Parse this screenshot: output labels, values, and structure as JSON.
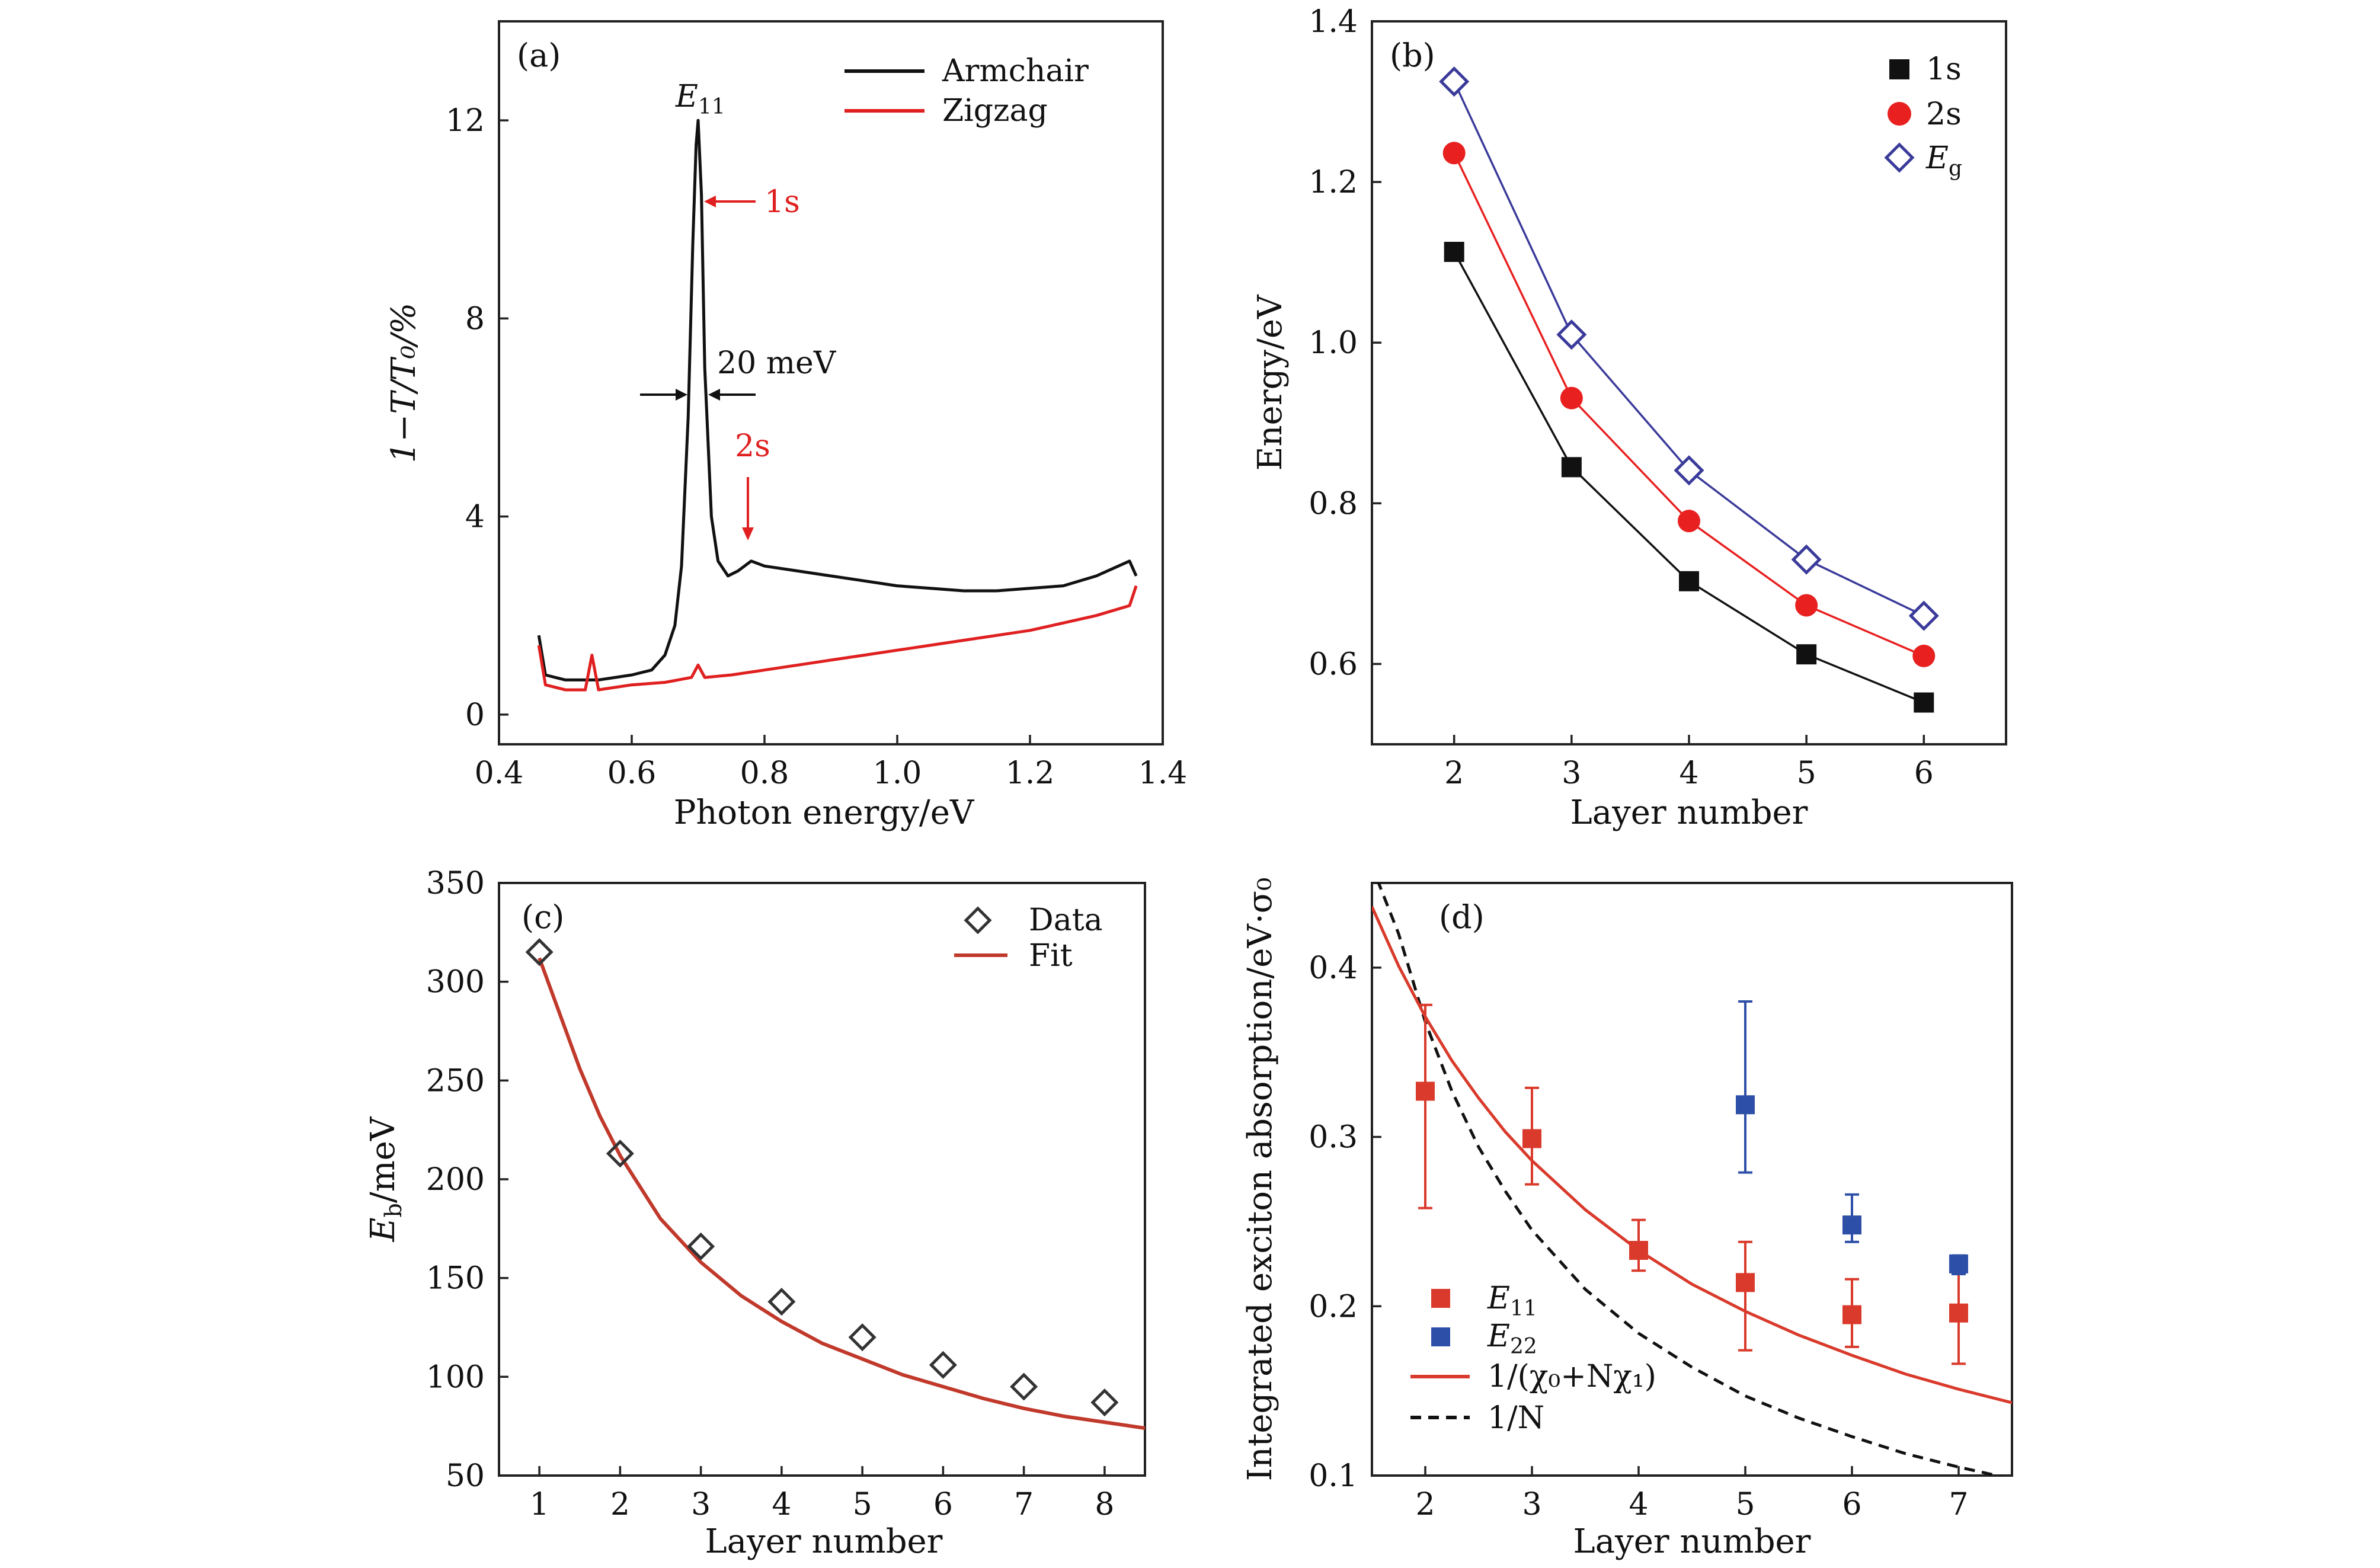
{
  "chart_data": [
    {
      "panel": "(a)",
      "type": "line",
      "xlabel": "Photon energy/eV",
      "ylabel": "1−T/T₀/%",
      "xlim": [
        0.4,
        1.4
      ],
      "ylim": [
        -0.6,
        14
      ],
      "xticks": [
        "0.4",
        "0.6",
        "0.8",
        "1.0",
        "1.2",
        "1.4"
      ],
      "yticks": [
        "0",
        "4",
        "8",
        "12"
      ],
      "legend": {
        "placement": "top-right"
      },
      "series": [
        {
          "name": "Armchair",
          "color": "#111111",
          "x": [
            0.46,
            0.47,
            0.5,
            0.55,
            0.6,
            0.63,
            0.65,
            0.665,
            0.675,
            0.685,
            0.692,
            0.697,
            0.7,
            0.705,
            0.71,
            0.72,
            0.73,
            0.745,
            0.76,
            0.78,
            0.8,
            0.85,
            0.9,
            0.95,
            1.0,
            1.05,
            1.1,
            1.15,
            1.2,
            1.25,
            1.3,
            1.35,
            1.36
          ],
          "y": [
            1.6,
            0.8,
            0.7,
            0.7,
            0.8,
            0.9,
            1.2,
            1.8,
            3.0,
            6.0,
            9.5,
            11.5,
            12.0,
            10.5,
            7.0,
            4.0,
            3.1,
            2.8,
            2.9,
            3.1,
            3.0,
            2.9,
            2.8,
            2.7,
            2.6,
            2.55,
            2.5,
            2.5,
            2.55,
            2.6,
            2.8,
            3.1,
            2.8
          ]
        },
        {
          "name": "Zigzag",
          "color": "#e02020",
          "x": [
            0.46,
            0.47,
            0.5,
            0.53,
            0.54,
            0.55,
            0.6,
            0.65,
            0.69,
            0.7,
            0.71,
            0.75,
            0.8,
            0.85,
            0.9,
            0.95,
            1.0,
            1.05,
            1.1,
            1.15,
            1.2,
            1.25,
            1.3,
            1.35,
            1.36
          ],
          "y": [
            1.4,
            0.6,
            0.5,
            0.5,
            1.2,
            0.5,
            0.6,
            0.65,
            0.75,
            1.0,
            0.75,
            0.8,
            0.9,
            1.0,
            1.1,
            1.2,
            1.3,
            1.4,
            1.5,
            1.6,
            1.7,
            1.85,
            2.0,
            2.2,
            2.6
          ]
        }
      ],
      "annotations": {
        "peak_label": "E",
        "peak_sub": "11",
        "arrow_1s": "1s",
        "arrow_2s": "2s",
        "fwhm": "20 meV"
      }
    },
    {
      "panel": "(b)",
      "type": "scatter",
      "xlabel": "Layer number",
      "ylabel": "Energy/eV",
      "xlim": [
        1.3,
        6.7
      ],
      "ylim": [
        0.5,
        1.4
      ],
      "xticks": [
        2,
        3,
        4,
        5,
        6
      ],
      "yticks": [
        "0.6",
        "0.8",
        "1.0",
        "1.2",
        "1.4"
      ],
      "legend": {
        "placement": "top-right"
      },
      "x": [
        2,
        3,
        4,
        5,
        6
      ],
      "series": [
        {
          "name": "1s",
          "marker": "square",
          "color": "#111111",
          "values": [
            1.113,
            0.845,
            0.703,
            0.612,
            0.552
          ]
        },
        {
          "name": "2s",
          "marker": "circle",
          "color": "#e82020",
          "values": [
            1.236,
            0.931,
            0.778,
            0.673,
            0.61
          ]
        },
        {
          "name": "E",
          "name_sub": "g",
          "marker": "diamond-open",
          "color": "#3a3a9a",
          "values": [
            1.325,
            1.01,
            0.841,
            0.73,
            0.66
          ]
        }
      ]
    },
    {
      "panel": "(c)",
      "type": "scatter",
      "xlabel": "Layer number",
      "ylabel": "E",
      "ylabel_sub": "b",
      "ylabel_rest": "/meV",
      "xlim": [
        0.5,
        8.5
      ],
      "ylim": [
        50,
        350
      ],
      "xticks": [
        1,
        2,
        3,
        4,
        5,
        6,
        7,
        8
      ],
      "yticks": [
        50,
        100,
        150,
        200,
        250,
        300,
        350
      ],
      "legend": {
        "placement": "top-right"
      },
      "data": {
        "name": "Data",
        "x": [
          1,
          2,
          3,
          4,
          5,
          6,
          7,
          8
        ],
        "y": [
          315,
          213,
          166,
          138,
          120,
          106,
          95,
          87
        ]
      },
      "fit": {
        "name": "Fit",
        "color": "#c0392b",
        "x": [
          1.0,
          1.25,
          1.5,
          1.75,
          2.0,
          2.5,
          3.0,
          3.5,
          4.0,
          4.5,
          5.0,
          5.5,
          6.0,
          6.5,
          7.0,
          7.5,
          8.0,
          8.5
        ],
        "y": [
          312,
          284,
          256,
          232,
          212,
          180,
          158,
          141,
          128,
          117,
          109,
          101,
          95,
          89,
          84,
          80,
          77,
          74
        ]
      }
    },
    {
      "panel": "(d)",
      "type": "scatter",
      "xlabel": "Layer number",
      "ylabel": "Integrated exciton absorption/eV·σ₀",
      "xlim": [
        1.5,
        7.5
      ],
      "ylim": [
        0.1,
        0.45
      ],
      "xticks": [
        2,
        3,
        4,
        5,
        6,
        7
      ],
      "yticks": [
        "0.1",
        "0.2",
        "0.3",
        "0.4"
      ],
      "legend": {
        "placement": "bottom-left"
      },
      "series": [
        {
          "name": "E",
          "name_sub": "11",
          "color": "#d93a2b",
          "x": [
            2,
            3,
            4,
            5,
            6,
            7
          ],
          "y": [
            0.327,
            0.299,
            0.233,
            0.214,
            0.195,
            0.196
          ],
          "err_low": [
            0.258,
            0.272,
            0.221,
            0.174,
            0.176,
            0.166
          ],
          "err_high": [
            0.378,
            0.329,
            0.251,
            0.238,
            0.216,
            0.225
          ]
        },
        {
          "name": "E",
          "name_sub": "22",
          "color": "#2e4fa8",
          "x": [
            5,
            6,
            7
          ],
          "y": [
            0.319,
            0.248,
            0.225
          ],
          "err_low": [
            0.279,
            0.238,
            0.219
          ],
          "err_high": [
            0.38,
            0.266,
            0.23
          ]
        }
      ],
      "fit_label": "1/(χ₀+Nχ₁)",
      "fit_color": "#d93a2b",
      "fit_x": [
        1.5,
        1.75,
        2.0,
        2.25,
        2.5,
        2.75,
        3.0,
        3.5,
        4.0,
        4.5,
        5.0,
        5.5,
        6.0,
        6.5,
        7.0,
        7.5
      ],
      "fit_y": [
        0.436,
        0.401,
        0.371,
        0.345,
        0.323,
        0.303,
        0.286,
        0.257,
        0.233,
        0.213,
        0.197,
        0.183,
        0.171,
        0.16,
        0.151,
        0.143
      ],
      "ref_label": "1/N",
      "ref_x": [
        1.55,
        1.75,
        2.0,
        2.25,
        2.5,
        2.75,
        3.0,
        3.5,
        4.0,
        4.5,
        5.0,
        5.5,
        6.0,
        6.5,
        7.0,
        7.5
      ],
      "ref_y": [
        0.452,
        0.42,
        0.368,
        0.327,
        0.294,
        0.268,
        0.245,
        0.21,
        0.184,
        0.164,
        0.147,
        0.134,
        0.123,
        0.113,
        0.105,
        0.098
      ]
    }
  ]
}
